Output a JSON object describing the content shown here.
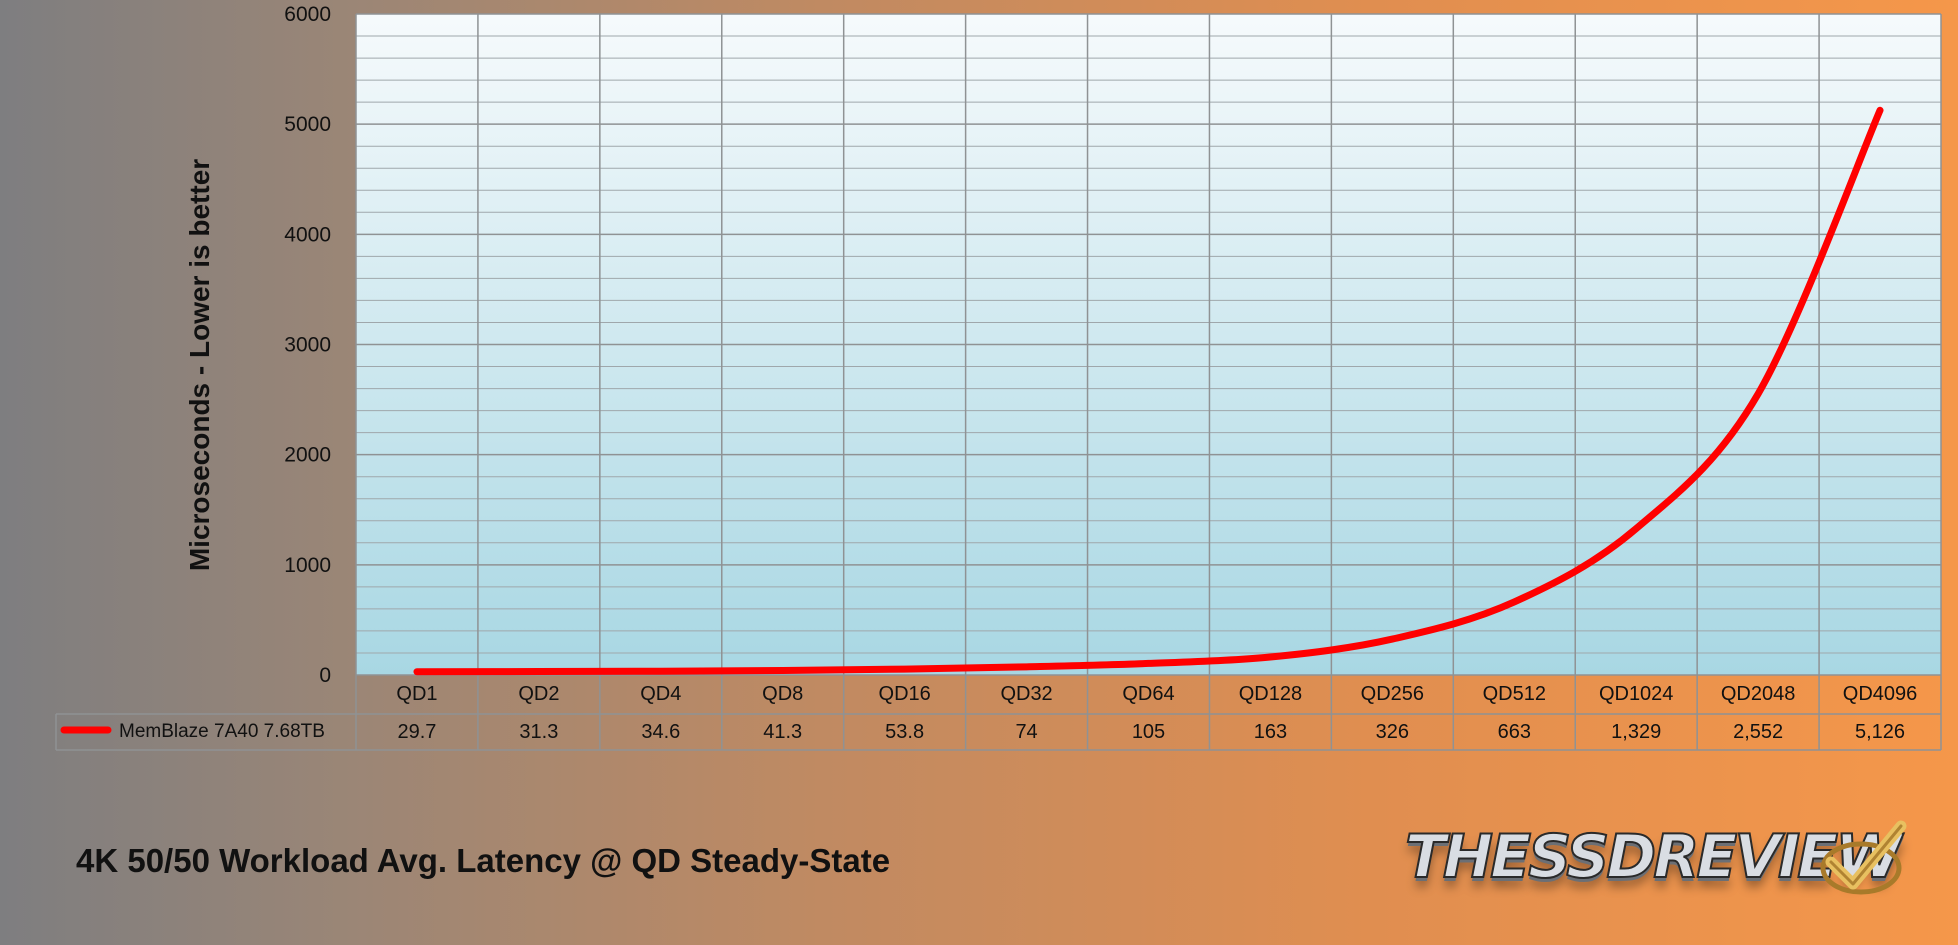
{
  "chart_data": {
    "type": "line",
    "title": "4K 50/50 Workload Avg. Latency @ QD Steady-State",
    "ylabel": "Microseconds - Lower is better",
    "xlabel": "",
    "ylim": [
      0,
      6000
    ],
    "y_ticks": [
      "0",
      "1000",
      "2000",
      "3000",
      "4000",
      "5000",
      "6000"
    ],
    "categories": [
      "QD1",
      "QD2",
      "QD4",
      "QD8",
      "QD16",
      "QD32",
      "QD64",
      "QD128",
      "QD256",
      "QD512",
      "QD1024",
      "QD2048",
      "QD4096"
    ],
    "series": [
      {
        "name": "MemBlaze 7A40 7.68TB",
        "values": [
          29.7,
          31.3,
          34.6,
          41.3,
          53.8,
          74,
          105,
          163,
          326,
          663,
          1329,
          2552,
          5126
        ],
        "labels": [
          "29.7",
          "31.3",
          "34.6",
          "41.3",
          "53.8",
          "74",
          "105",
          "163",
          "326",
          "663",
          "1,329",
          "2,552",
          "5,126"
        ],
        "color": "#ff0000"
      }
    ],
    "grid": true,
    "legend": "data-table"
  },
  "logo": {
    "text": "THESSDREVIEW",
    "icon": "checkmark-icon"
  },
  "colors": {
    "plot_top": "#f6fafc",
    "plot_bottom": "#a8d7e3",
    "line": "#ff0000",
    "grid": "#8f9294"
  }
}
